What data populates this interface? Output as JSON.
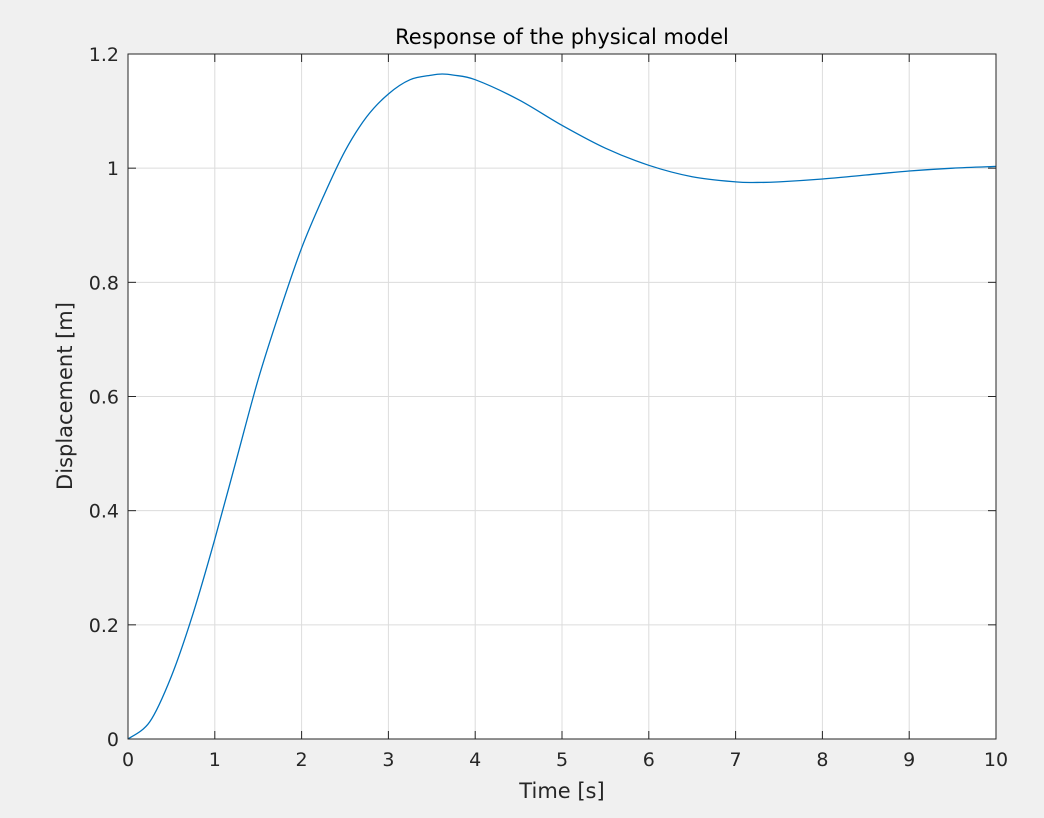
{
  "chart_data": {
    "type": "line",
    "title": "Response of the physical model",
    "xlabel": "Time [s]",
    "ylabel": "Displacement [m]",
    "xlim": [
      0,
      10
    ],
    "ylim": [
      0,
      1.2
    ],
    "xticks": [
      0,
      1,
      2,
      3,
      4,
      5,
      6,
      7,
      8,
      9,
      10
    ],
    "yticks": [
      0,
      0.2,
      0.4,
      0.6,
      0.8,
      1,
      1.2
    ],
    "xtick_labels": [
      "0",
      "1",
      "2",
      "3",
      "4",
      "5",
      "6",
      "7",
      "8",
      "9",
      "10"
    ],
    "ytick_labels": [
      "0",
      "0.2",
      "0.4",
      "0.6",
      "0.8",
      "1",
      "1.2"
    ],
    "grid": true,
    "series": [
      {
        "color": "#0072bd",
        "x": [
          0,
          0.25,
          0.5,
          0.75,
          1,
          1.25,
          1.5,
          1.75,
          2,
          2.25,
          2.5,
          2.75,
          3,
          3.25,
          3.5,
          3.62,
          3.75,
          4,
          4.5,
          5,
          5.5,
          6,
          6.5,
          7,
          7.25,
          7.5,
          8,
          8.5,
          9,
          9.5,
          10
        ],
        "y": [
          0,
          0.03,
          0.11,
          0.22,
          0.35,
          0.49,
          0.63,
          0.75,
          0.86,
          0.95,
          1.03,
          1.09,
          1.13,
          1.155,
          1.163,
          1.165,
          1.163,
          1.155,
          1.12,
          1.075,
          1.035,
          1.005,
          0.985,
          0.976,
          0.975,
          0.976,
          0.981,
          0.988,
          0.995,
          1.0,
          1.003
        ]
      }
    ]
  }
}
